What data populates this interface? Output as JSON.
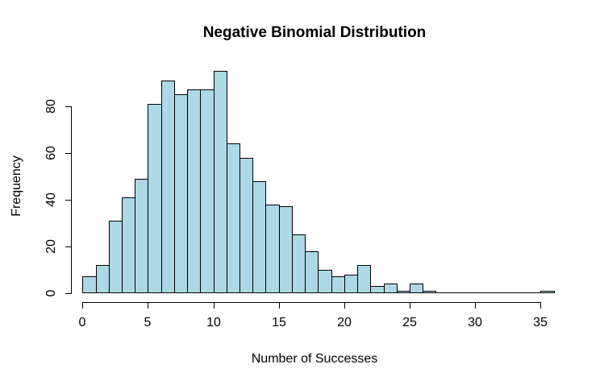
{
  "chart_data": {
    "type": "bar",
    "subtype": "histogram",
    "title": "Negative Binomial Distribution",
    "xlabel": "Number of Successes",
    "ylabel": "Frequency",
    "bin_start": 0,
    "bin_width": 1,
    "values": [
      7,
      12,
      31,
      41,
      49,
      81,
      91,
      85,
      87,
      87,
      95,
      64,
      58,
      48,
      38,
      37,
      25,
      18,
      10,
      7,
      8,
      12,
      3,
      4,
      1,
      4,
      1,
      0,
      0,
      0,
      0,
      0,
      0,
      0,
      0,
      1
    ],
    "x_ticks": [
      0,
      5,
      10,
      15,
      20,
      25,
      30,
      35
    ],
    "y_ticks": [
      0,
      20,
      40,
      60,
      80
    ],
    "xlim": [
      0,
      36
    ],
    "ylim": [
      0,
      95
    ],
    "grid": false,
    "legend": false,
    "bar_fill": "#ADD8E6",
    "bar_border": "#000000",
    "background": "#FFFFFF",
    "text_color": "#000000"
  }
}
